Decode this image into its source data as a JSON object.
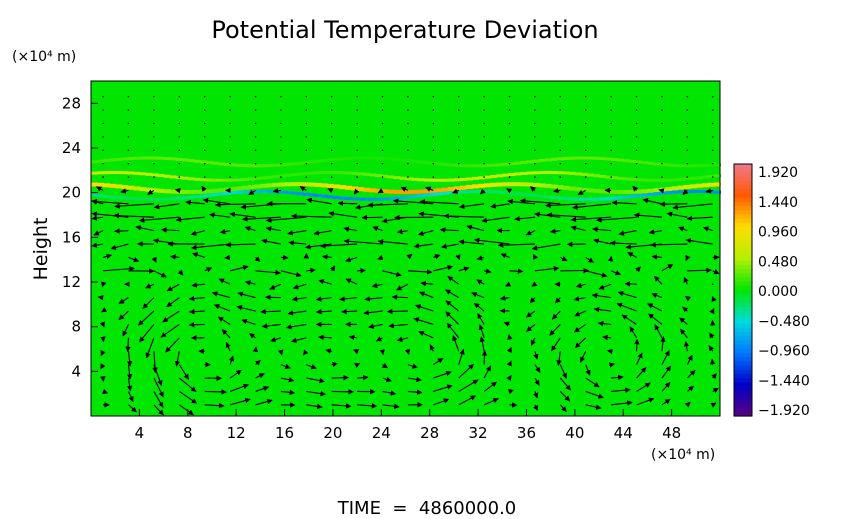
{
  "chart_data": {
    "type": "heatmap",
    "title": "Potential Temperature Deviation",
    "xlabel": "",
    "ylabel": "Height",
    "x_unit": "(×10⁴ m)",
    "y_unit": "(×10⁴ m)",
    "xlim": [
      0,
      52
    ],
    "ylim": [
      0,
      30
    ],
    "x_ticks": [
      "4",
      "8",
      "12",
      "16",
      "20",
      "24",
      "28",
      "32",
      "36",
      "40",
      "44",
      "48"
    ],
    "y_ticks": [
      "4",
      "8",
      "12",
      "16",
      "20",
      "24",
      "28"
    ],
    "colorbar": {
      "labels": [
        "1.920",
        "1.440",
        "0.960",
        "0.480",
        "0.000",
        "−0.480",
        "−0.960",
        "−1.440",
        "−1.920"
      ],
      "range": [
        -1.92,
        1.92
      ]
    },
    "field": {
      "background": 0.0,
      "bands": [
        {
          "y": 22.8,
          "amplitude": 0.25
        },
        {
          "y": 21.5,
          "amplitude": 0.6
        },
        {
          "y": 20.5,
          "amplitude": 1.2
        },
        {
          "y": 19.8,
          "amplitude": -0.9
        }
      ]
    },
    "vortices": [
      {
        "cx": 8.5,
        "cy": 5.5
      },
      {
        "cx": 18.5,
        "cy": 5.5
      },
      {
        "cx": 28.5,
        "cy": 5.5
      },
      {
        "cx": 43.5,
        "cy": 5.5
      }
    ],
    "jets": [
      {
        "y": 19.0,
        "direction": -1
      },
      {
        "y": 15.0,
        "direction": -1
      },
      {
        "y": 13.5,
        "direction": 1
      },
      {
        "y": 17.5,
        "direction": -1
      }
    ]
  },
  "footer": {
    "time_label": "TIME  =  4860000.0"
  }
}
